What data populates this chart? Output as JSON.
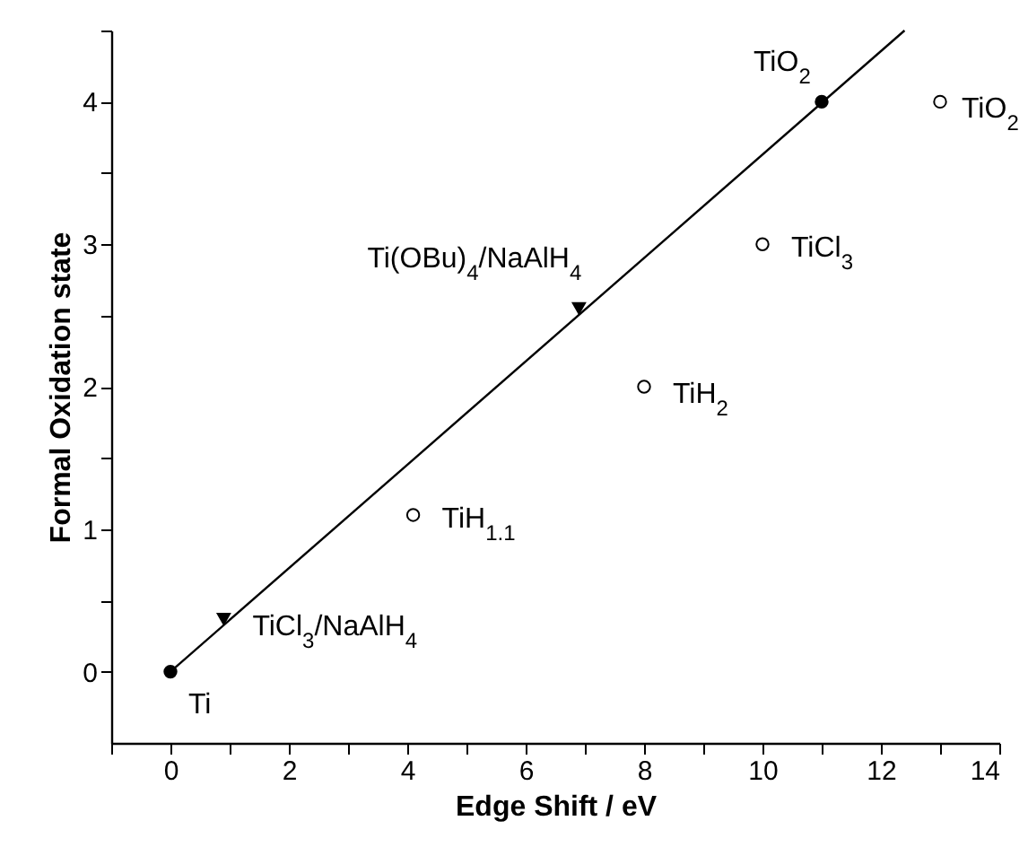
{
  "chart_data": {
    "type": "scatter",
    "xlabel": "Edge Shift / eV",
    "ylabel": "Formal Oxidation state",
    "xlim": [
      -1,
      14
    ],
    "ylim": [
      -0.5,
      4.5
    ],
    "xticks": [
      {
        "value": -1,
        "label": null
      },
      0,
      {
        "value": 1,
        "label": null
      },
      2,
      {
        "value": 3,
        "label": null
      },
      4,
      {
        "value": 5,
        "label": null
      },
      6,
      {
        "value": 7,
        "label": null
      },
      8,
      {
        "value": 9,
        "label": null
      },
      10,
      {
        "value": 11,
        "label": null
      },
      12,
      {
        "value": 13,
        "label": null
      },
      14
    ],
    "yticks": [
      0,
      {
        "value": 0.5,
        "label": null
      },
      1,
      {
        "value": 1.5,
        "label": null
      },
      2,
      {
        "value": 2.5,
        "label": null
      },
      3,
      {
        "value": 3.5,
        "label": null
      },
      4,
      {
        "value": 4.5,
        "label": null
      }
    ],
    "series": [
      {
        "type": "line",
        "color": "#000000",
        "x": [
          0,
          12.4
        ],
        "values": [
          0,
          4.5
        ],
        "marker": "none",
        "line_style": "solid"
      },
      {
        "color": "#000000",
        "marker": "circle",
        "x": [
          0,
          11
        ],
        "values": [
          0,
          4
        ]
      },
      {
        "color": "#ffffff",
        "marker": "circle",
        "x": [
          4.1,
          8,
          10,
          13
        ],
        "values": [
          1.1,
          2,
          3,
          4
        ]
      },
      {
        "color": "#000000",
        "marker": "triangle",
        "x": [
          0.9,
          6.9
        ],
        "values": [
          0.37,
          2.55
        ]
      }
    ],
    "annotations": [
      {
        "text": "Ti",
        "x": 0,
        "y": 0
      },
      {
        "text": "TiO$_{2}$",
        "x": 11,
        "y": 4
      },
      {
        "text": "TiH$_{1.1}$",
        "x": 4.1,
        "y": 1.1
      },
      {
        "text": "TiH$_{2}$",
        "x": 8,
        "y": 2
      },
      {
        "text": "TiCl$_{3}$",
        "x": 10,
        "y": 3
      },
      {
        "text": "TiO$_{2}$",
        "x": 13,
        "y": 4
      },
      {
        "text": "TiCl$_{3}$/NaAlH$_{4}$",
        "x": 0.9,
        "y": 0.37
      },
      {
        "text": "Ti(OBu)$_{4}$/NaAlH$_{4}$",
        "x": 6.9,
        "y": 2.55
      }
    ]
  }
}
